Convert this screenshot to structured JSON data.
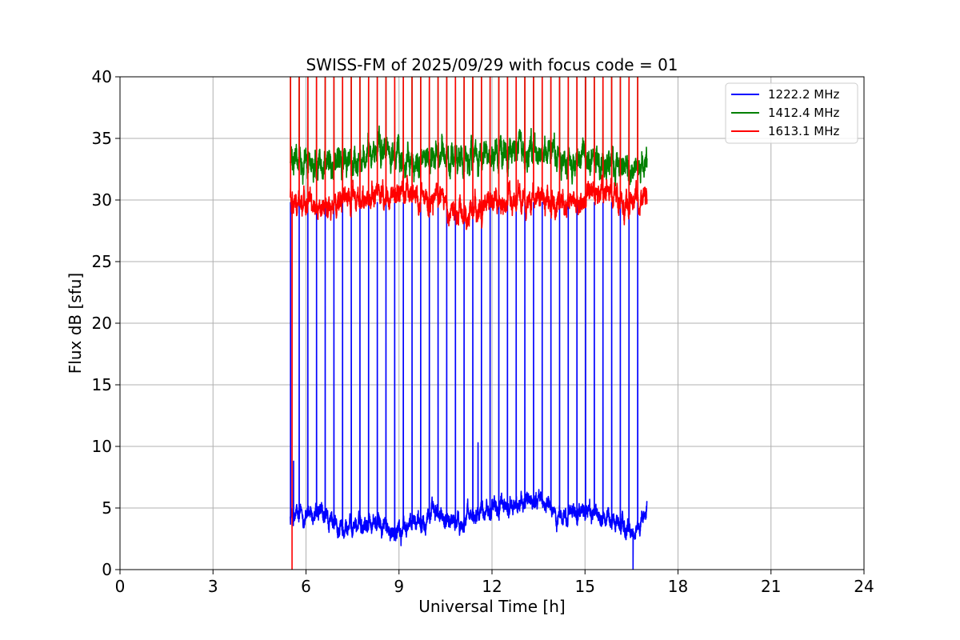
{
  "chart_data": {
    "type": "line",
    "title": "SWISS-FM of 2025/09/29 with focus code = 01",
    "xlabel": "Universal Time [h]",
    "ylabel": "Flux dB [sfu]",
    "xlim": [
      0,
      24
    ],
    "ylim": [
      0,
      40
    ],
    "xticks": [
      "0",
      "3",
      "6",
      "9",
      "12",
      "15",
      "18",
      "21",
      "24"
    ],
    "yticks": [
      "0",
      "5",
      "10",
      "15",
      "20",
      "25",
      "30",
      "35",
      "40"
    ],
    "grid": true,
    "legend_position": "top-right",
    "data_start_h": 5.5,
    "data_end_h": 17.0,
    "spike_times_h": [
      5.5,
      5.78,
      6.06,
      6.34,
      6.62,
      6.9,
      7.18,
      7.46,
      7.74,
      8.02,
      8.3,
      8.58,
      8.86,
      9.14,
      9.42,
      9.7,
      9.98,
      10.26,
      10.54,
      10.82,
      11.1,
      11.38,
      11.66,
      11.94,
      12.22,
      12.5,
      12.78,
      13.06,
      13.34,
      13.62,
      13.9,
      14.18,
      14.46,
      14.74,
      15.02,
      15.3,
      15.58,
      15.86,
      16.14,
      16.42,
      16.7
    ],
    "series": [
      {
        "name": "1222.2 MHz",
        "color": "#0000ff",
        "baseline_profile": [
          [
            5.5,
            4.3
          ],
          [
            6.5,
            4.4
          ],
          [
            7.0,
            3.3
          ],
          [
            8.0,
            3.9
          ],
          [
            9.0,
            3.1
          ],
          [
            10.0,
            4.6
          ],
          [
            11.0,
            3.8
          ],
          [
            11.6,
            5.0
          ],
          [
            12.5,
            5.0
          ],
          [
            13.5,
            5.8
          ],
          [
            14.2,
            4.3
          ],
          [
            15.0,
            4.8
          ],
          [
            16.0,
            3.9
          ],
          [
            16.6,
            2.8
          ],
          [
            17.0,
            5.0
          ]
        ],
        "noise": 0.7,
        "spike_peak": 29.8,
        "extra_peaks": [
          [
            5.6,
            8.8
          ],
          [
            11.55,
            10.3
          ],
          [
            16.55,
            0.0
          ]
        ]
      },
      {
        "name": "1412.4 MHz",
        "color": "#008000",
        "baseline_profile": [
          [
            5.5,
            33.0
          ],
          [
            6.5,
            33.2
          ],
          [
            7.5,
            33.0
          ],
          [
            8.5,
            34.0
          ],
          [
            9.5,
            33.0
          ],
          [
            10.5,
            33.3
          ],
          [
            11.5,
            33.0
          ],
          [
            12.5,
            33.8
          ],
          [
            13.5,
            34.0
          ],
          [
            14.5,
            33.3
          ],
          [
            15.5,
            33.0
          ],
          [
            16.5,
            32.8
          ],
          [
            17.0,
            33.0
          ]
        ],
        "noise": 1.1,
        "spike_peak": 40.0,
        "extra_peaks": []
      },
      {
        "name": "1613.1 MHz",
        "color": "#ff0000",
        "baseline_profile": [
          [
            5.5,
            30.2
          ],
          [
            6.5,
            29.3
          ],
          [
            7.5,
            30.0
          ],
          [
            8.5,
            30.5
          ],
          [
            9.5,
            30.2
          ],
          [
            10.5,
            30.0
          ],
          [
            11.0,
            28.5
          ],
          [
            12.0,
            29.8
          ],
          [
            12.5,
            29.6
          ],
          [
            13.5,
            30.3
          ],
          [
            14.5,
            29.5
          ],
          [
            15.3,
            30.8
          ],
          [
            16.3,
            29.8
          ],
          [
            17.0,
            30.2
          ]
        ],
        "noise": 0.9,
        "spike_peak": 40.0,
        "extra_peaks": [
          [
            5.55,
            0.0
          ]
        ]
      }
    ]
  }
}
